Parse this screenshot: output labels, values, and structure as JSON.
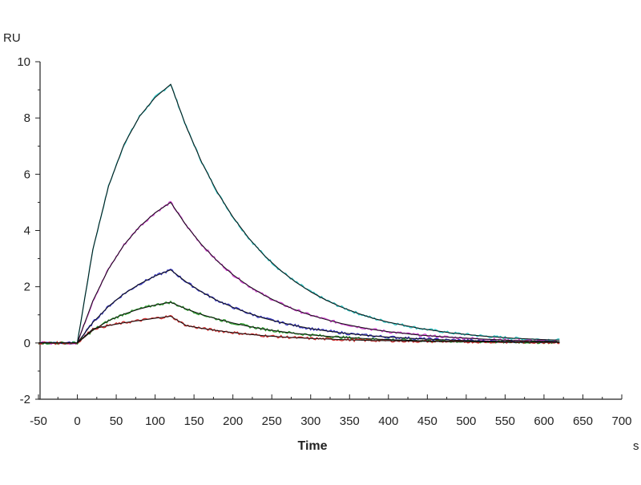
{
  "chart_data": {
    "type": "line",
    "title": "",
    "xlabel": "Time",
    "x_unit": "s",
    "ylabel": "RU",
    "xlim": [
      -50,
      700
    ],
    "ylim": [
      -2,
      10
    ],
    "x_ticks": [
      -50,
      0,
      50,
      100,
      150,
      200,
      250,
      300,
      350,
      400,
      450,
      500,
      550,
      600,
      650,
      700
    ],
    "y_ticks": [
      -2,
      0,
      2,
      4,
      6,
      8,
      10
    ],
    "grid": false,
    "legend": "none",
    "x": [
      -50,
      0,
      20,
      40,
      60,
      80,
      100,
      120,
      140,
      160,
      180,
      200,
      220,
      240,
      260,
      280,
      300,
      320,
      340,
      360,
      380,
      400,
      440,
      480,
      520,
      560,
      600,
      620
    ],
    "series": [
      {
        "name": "cyan",
        "color": "#2ec4c4",
        "values": [
          0,
          0,
          3.33,
          5.57,
          7.06,
          8.06,
          8.73,
          9.2,
          7.69,
          6.42,
          5.36,
          4.48,
          3.74,
          3.12,
          2.61,
          2.18,
          1.82,
          1.52,
          1.27,
          1.06,
          0.88,
          0.74,
          0.52,
          0.36,
          0.25,
          0.17,
          0.12,
          0.1
        ]
      },
      {
        "name": "magenta",
        "color": "#d040d0",
        "values": [
          0,
          0,
          1.5,
          2.63,
          3.49,
          4.14,
          4.63,
          5.0,
          4.18,
          3.49,
          2.91,
          2.43,
          2.03,
          1.7,
          1.42,
          1.18,
          0.99,
          0.83,
          0.69,
          0.58,
          0.48,
          0.4,
          0.28,
          0.2,
          0.14,
          0.09,
          0.07,
          0.05
        ]
      },
      {
        "name": "blue",
        "color": "#3535c0",
        "values": [
          0,
          0,
          0.73,
          1.3,
          1.75,
          2.1,
          2.38,
          2.6,
          2.17,
          1.81,
          1.51,
          1.27,
          1.06,
          0.88,
          0.74,
          0.62,
          0.51,
          0.43,
          0.36,
          0.3,
          0.25,
          0.21,
          0.15,
          0.1,
          0.07,
          0.05,
          0.03,
          0.03
        ]
      },
      {
        "name": "green",
        "color": "#2a9a2a",
        "values": [
          0,
          0,
          0.45,
          0.79,
          1.03,
          1.21,
          1.35,
          1.45,
          1.21,
          1.01,
          0.85,
          0.71,
          0.59,
          0.49,
          0.41,
          0.34,
          0.29,
          0.24,
          0.2,
          0.17,
          0.14,
          0.12,
          0.08,
          0.06,
          0.04,
          0.03,
          0.02,
          0.02
        ]
      },
      {
        "name": "red",
        "color": "#d03030",
        "values": [
          0,
          0,
          0.5,
          0.62,
          0.72,
          0.8,
          0.88,
          0.95,
          0.62,
          0.52,
          0.44,
          0.37,
          0.31,
          0.26,
          0.22,
          0.19,
          0.16,
          0.14,
          0.12,
          0.1,
          0.09,
          0.08,
          0.06,
          0.05,
          0.04,
          0.03,
          0.03,
          0.02
        ]
      }
    ],
    "fit_color": "#111111"
  }
}
